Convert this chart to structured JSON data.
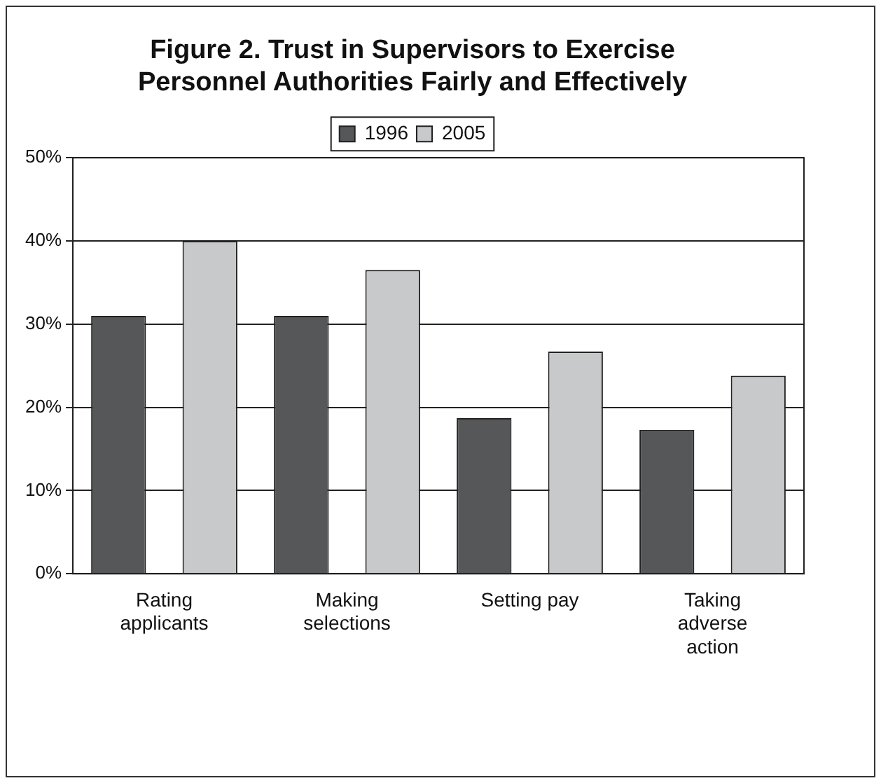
{
  "chart_data": {
    "type": "bar",
    "title": [
      "Figure 2. Trust in Supervisors to Exercise",
      "Personnel Authorities Fairly and Effectively"
    ],
    "categories": [
      "Rating applicants",
      "Making selections",
      "Setting pay",
      "Taking adverse action"
    ],
    "series": [
      {
        "name": "1996",
        "color": "#555759",
        "values": [
          31,
          31,
          18.7,
          17.3
        ]
      },
      {
        "name": "2005",
        "color": "#c8c9cb",
        "values": [
          40,
          36.5,
          26.7,
          23.8
        ]
      }
    ],
    "ylim": [
      0,
      50
    ],
    "yticks": [
      {
        "value": 0,
        "label": "0%"
      },
      {
        "value": 10,
        "label": "10%"
      },
      {
        "value": 20,
        "label": "20%"
      },
      {
        "value": 30,
        "label": "30%"
      },
      {
        "value": 40,
        "label": "40%"
      },
      {
        "value": 50,
        "label": "50%"
      }
    ],
    "grid": "y",
    "legend": "top"
  }
}
